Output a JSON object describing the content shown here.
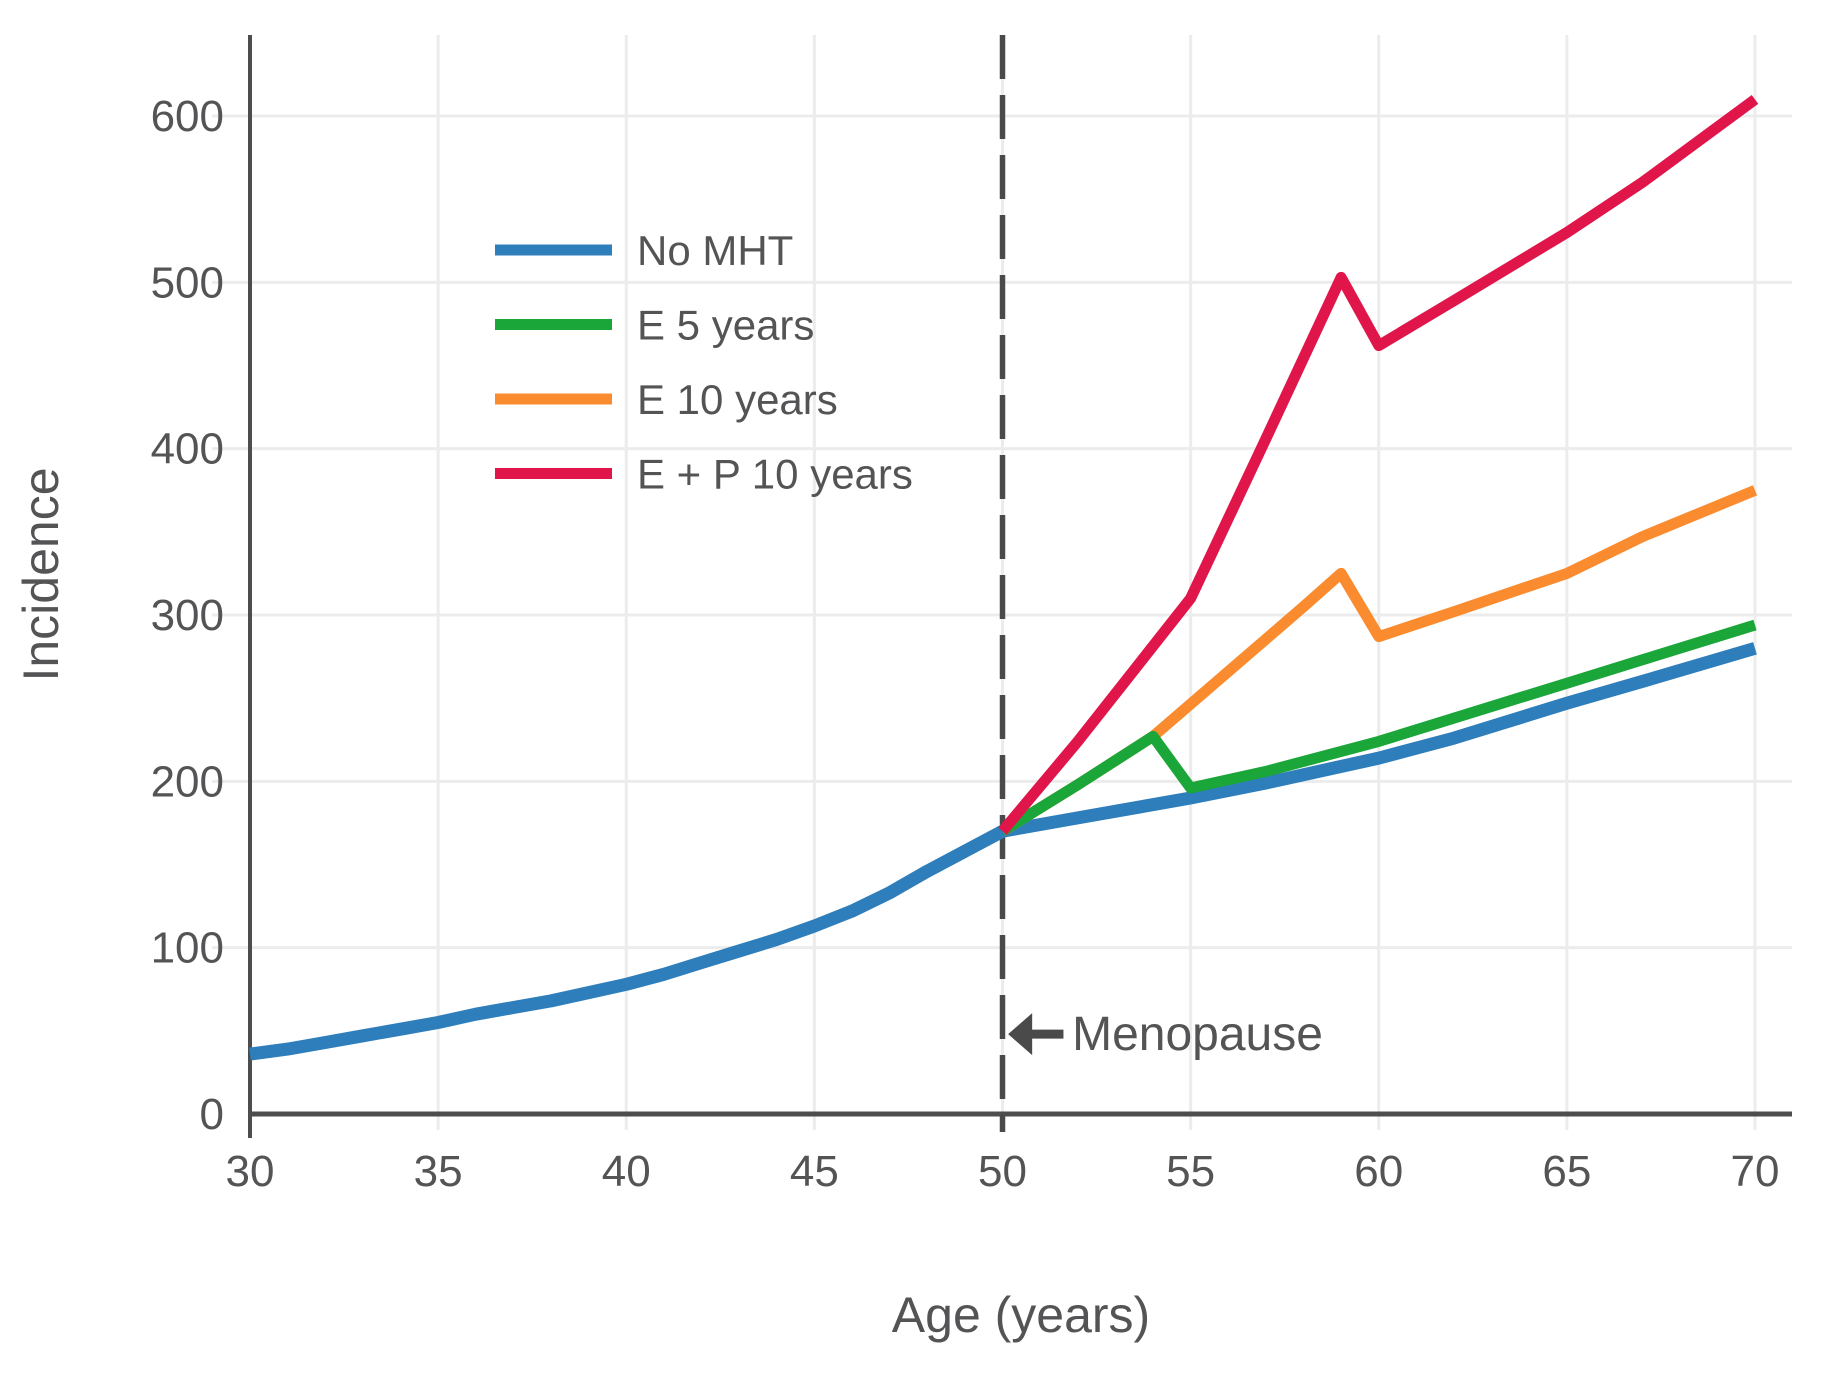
{
  "chart_data": {
    "type": "line",
    "title": "",
    "xlabel": "Age (years)",
    "ylabel": "Incidence",
    "xlim": [
      30,
      71
    ],
    "ylim": [
      0,
      649
    ],
    "xticks": [
      30,
      35,
      40,
      45,
      50,
      55,
      60,
      65,
      70
    ],
    "yticks": [
      0,
      100,
      200,
      300,
      400,
      500,
      600
    ],
    "grid": true,
    "legend_position": "upper-left-inside",
    "colors": {
      "grid": "#ececec",
      "axis": "#4d4d4d",
      "text": "#545456",
      "vline": "#4a4a4a",
      "background": "#ffffff"
    },
    "vline": {
      "x": 50,
      "style": "dashed"
    },
    "annotation": {
      "text": "Menopause",
      "arrow": "left-arrow",
      "arrow_tip_age": 50.15,
      "arrow_tail_age": 51.62,
      "text_age": 51.85,
      "value": 48
    },
    "series": [
      {
        "name": "No MHT",
        "color": "#2e7ebc",
        "width": 13,
        "x": [
          30,
          31,
          32,
          33,
          34,
          35,
          36,
          37,
          38,
          39,
          40,
          41,
          42,
          43,
          44,
          45,
          46,
          47,
          48,
          49,
          50,
          52,
          55,
          57,
          60,
          62,
          65,
          67,
          70
        ],
        "y": [
          36,
          39,
          43,
          47,
          51,
          55,
          60,
          64,
          68,
          73,
          78,
          84,
          91,
          98,
          105,
          113,
          122,
          133,
          146,
          158,
          170,
          178,
          190,
          199,
          214,
          226,
          247,
          260,
          280
        ]
      },
      {
        "name": "E 5 years",
        "color": "#1ba63a",
        "width": 11,
        "x": [
          50,
          52,
          54,
          55,
          57,
          60,
          62,
          65,
          67,
          70
        ],
        "y": [
          170,
          198,
          227,
          196,
          206,
          224,
          238,
          259,
          273,
          294
        ]
      },
      {
        "name": "E 10 years",
        "color": "#fa8b2e",
        "width": 11,
        "x": [
          50,
          52,
          54,
          56,
          58,
          59,
          60,
          62,
          65,
          67,
          70
        ],
        "y": [
          170,
          198,
          227,
          266,
          305,
          325,
          287,
          302,
          325,
          347,
          375
        ]
      },
      {
        "name": "E + P 10 years",
        "color": "#e0164b",
        "width": 11,
        "x": [
          50,
          52,
          55,
          57,
          59,
          60,
          62,
          65,
          67,
          70
        ],
        "y": [
          170,
          224,
          310,
          406,
          503,
          462,
          489,
          530,
          560,
          610
        ]
      }
    ],
    "draw_order": [
      0,
      2,
      1,
      3
    ]
  }
}
